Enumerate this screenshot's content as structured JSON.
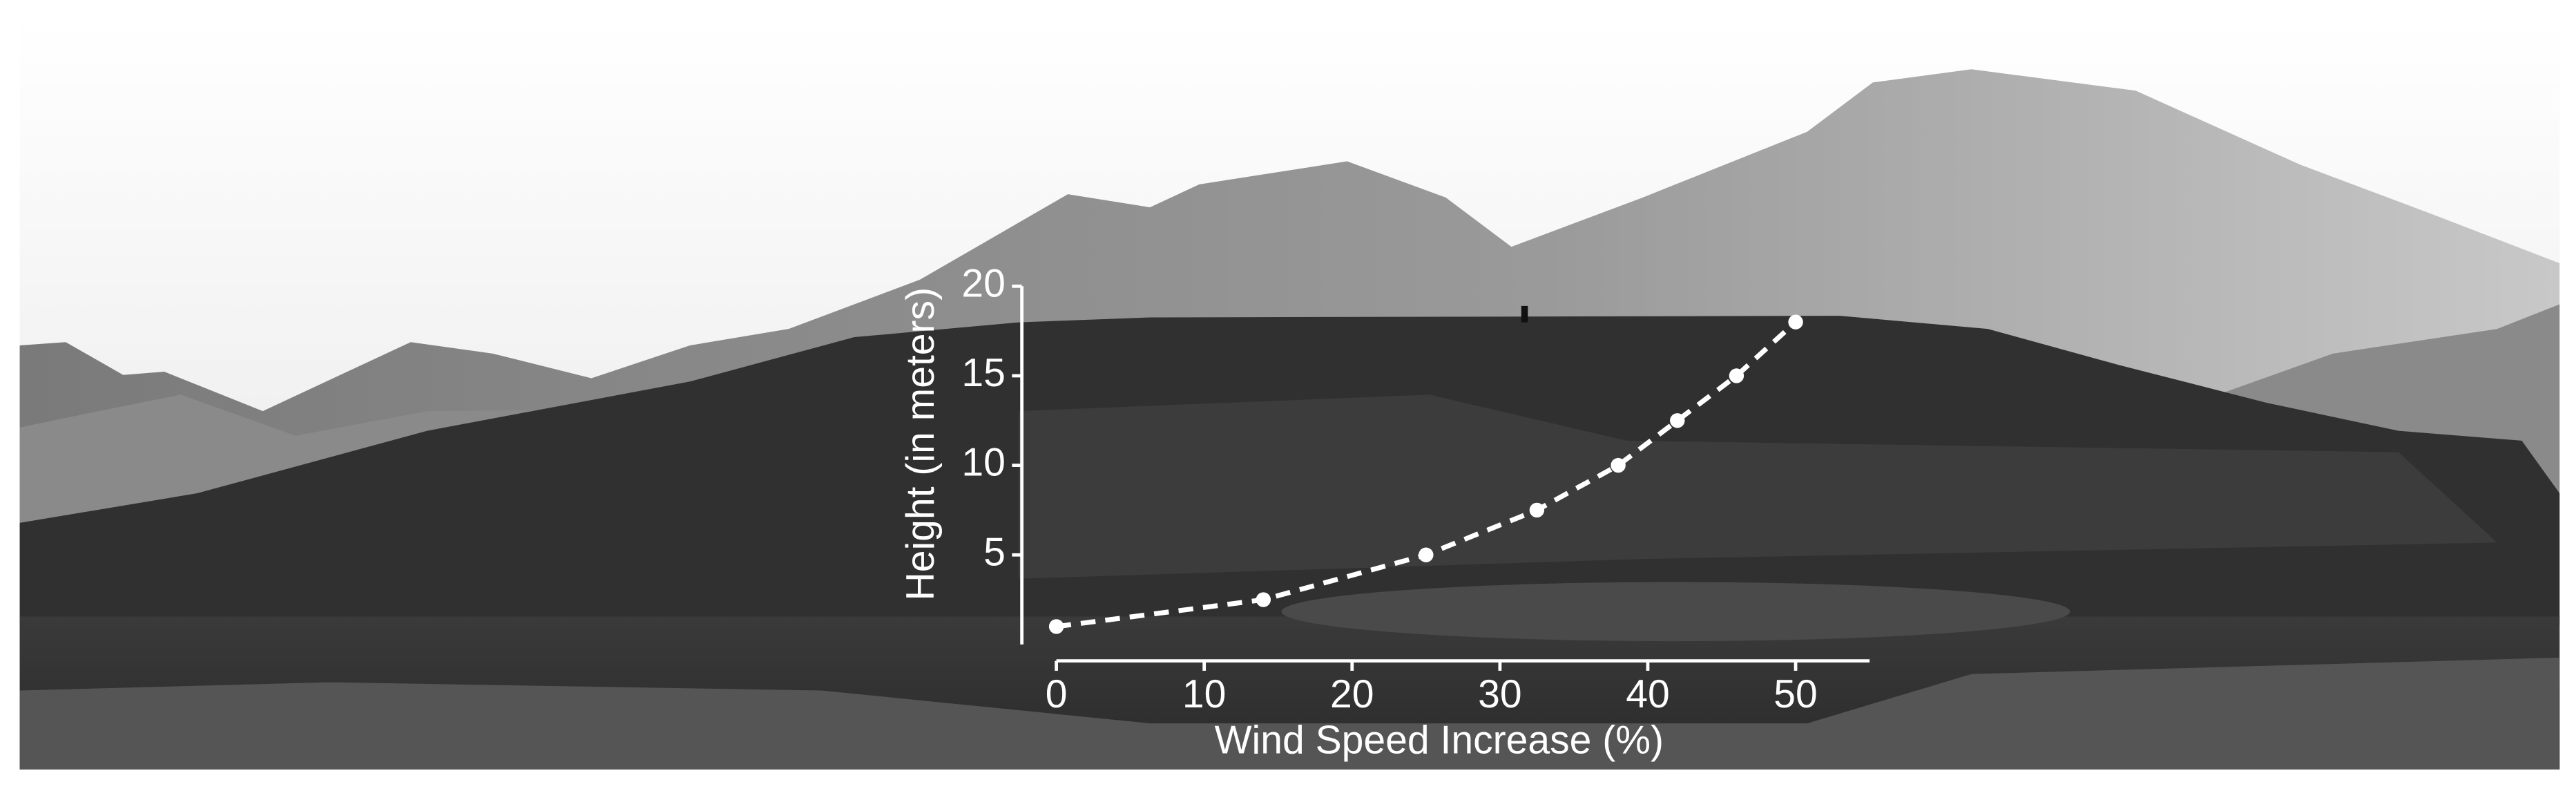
{
  "chart_data": {
    "type": "line",
    "x_label": "Wind Speed Increase (%)",
    "y_label": "Height (in meters)",
    "x": [
      0,
      14,
      25,
      32.5,
      38,
      42,
      46,
      50
    ],
    "values": [
      1,
      2.5,
      5,
      7.5,
      10,
      12.5,
      15,
      18
    ],
    "color": "#ffffff",
    "dashed": true,
    "markers": true,
    "xlim": [
      0,
      55
    ],
    "xticks": [
      0,
      10,
      20,
      30,
      40,
      50
    ],
    "ylim": [
      0,
      20
    ],
    "yticks": [
      5,
      10,
      15,
      20
    ]
  }
}
